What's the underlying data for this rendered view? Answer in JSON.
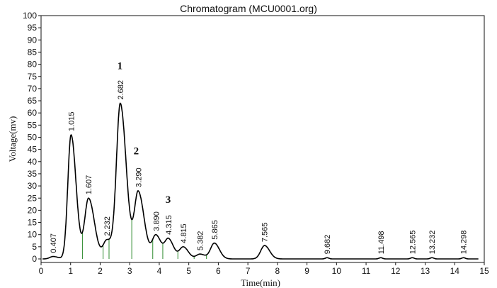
{
  "chart_data": {
    "type": "line",
    "title": "Chromatogram (MCU0001.org)",
    "xlabel": "Time(min)",
    "ylabel": "Voltage(mv)",
    "xlim": [
      0,
      15
    ],
    "ylim": [
      0,
      100
    ],
    "x_ticks": [
      "0",
      "1",
      "2",
      "3",
      "4",
      "5",
      "6",
      "7",
      "8",
      "9",
      "10",
      "11",
      "12",
      "13",
      "14",
      "15"
    ],
    "y_ticks": [
      "0",
      "5",
      "10",
      "15",
      "20",
      "25",
      "30",
      "35",
      "40",
      "45",
      "50",
      "55",
      "60",
      "65",
      "70",
      "75",
      "80",
      "85",
      "90",
      "95",
      "100"
    ],
    "grid": false,
    "series": [
      {
        "peaks": [
          {
            "time": 0.407,
            "label": "0.407",
            "height": 1.0
          },
          {
            "time": 1.015,
            "label": "1.015",
            "height": 51.0
          },
          {
            "time": 1.607,
            "label": "1.607",
            "height": 25.0
          },
          {
            "time": 2.232,
            "label": "2.232",
            "height": 8.0
          },
          {
            "time": 2.682,
            "label": "2.682",
            "height": 64.0
          },
          {
            "time": 3.29,
            "label": "3.290",
            "height": 28.0
          },
          {
            "time": 3.89,
            "label": "3.890",
            "height": 10.0
          },
          {
            "time": 4.315,
            "label": "4.315",
            "height": 8.5
          },
          {
            "time": 4.815,
            "label": "4.815",
            "height": 5.0
          },
          {
            "time": 5.382,
            "label": "5.382",
            "height": 2.0
          },
          {
            "time": 5.865,
            "label": "5.865",
            "height": 6.5
          },
          {
            "time": 7.565,
            "label": "7.565",
            "height": 5.5
          },
          {
            "time": 9.682,
            "label": "9.682",
            "height": 0.5
          },
          {
            "time": 11.498,
            "label": "11.498",
            "height": 0.5
          },
          {
            "time": 12.565,
            "label": "12.565",
            "height": 0.5
          },
          {
            "time": 13.232,
            "label": "13.232",
            "height": 0.5
          },
          {
            "time": 14.298,
            "label": "14.298",
            "height": 0.5
          }
        ]
      }
    ],
    "drop_lines": [
      1.4,
      2.1,
      2.3,
      3.07,
      3.78,
      4.12,
      4.63,
      5.18,
      5.6,
      9.2,
      11.12,
      12.2,
      12.95,
      13.85
    ],
    "annotations": [
      {
        "text": "1",
        "x": 2.67,
        "y": 78
      },
      {
        "text": "2",
        "x": 3.22,
        "y": 43
      },
      {
        "text": "3",
        "x": 4.3,
        "y": 23
      }
    ]
  }
}
